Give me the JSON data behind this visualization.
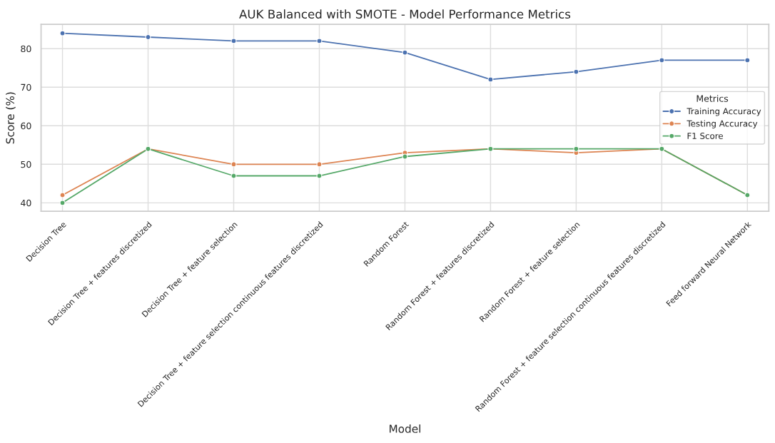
{
  "chart_data": {
    "type": "line",
    "title": "AUK Balanced with SMOTE - Model Performance Metrics",
    "xlabel": "Model",
    "ylabel": "Score (%)",
    "legend_title": "Metrics",
    "categories": [
      "Decision Tree",
      "Decision Tree + features discretized",
      "Decision Tree + feature selection",
      "Decision Tree + feature selection continuous features discretized",
      "Random Forest",
      "Random Forest + features discretized",
      "Random Forest + feature selection",
      "Random Forest + feature selection continuous features discretized",
      "Feed forward Neural Network"
    ],
    "series": [
      {
        "name": "Training Accuracy",
        "color": "#4c72b0",
        "values": [
          84,
          83,
          82,
          82,
          79,
          72,
          74,
          77,
          77
        ]
      },
      {
        "name": "Testing Accuracy",
        "color": "#dd8452",
        "values": [
          42,
          54,
          50,
          50,
          53,
          54,
          53,
          54,
          42
        ]
      },
      {
        "name": "F1 Score",
        "color": "#55a868",
        "values": [
          40,
          54,
          47,
          47,
          52,
          54,
          54,
          54,
          42
        ]
      }
    ],
    "ylim": [
      37.8,
      86.3
    ],
    "yticks": [
      40,
      50,
      60,
      70,
      80
    ],
    "grid": true,
    "legend": "center right",
    "marker": "circle",
    "line_style": "solid"
  }
}
